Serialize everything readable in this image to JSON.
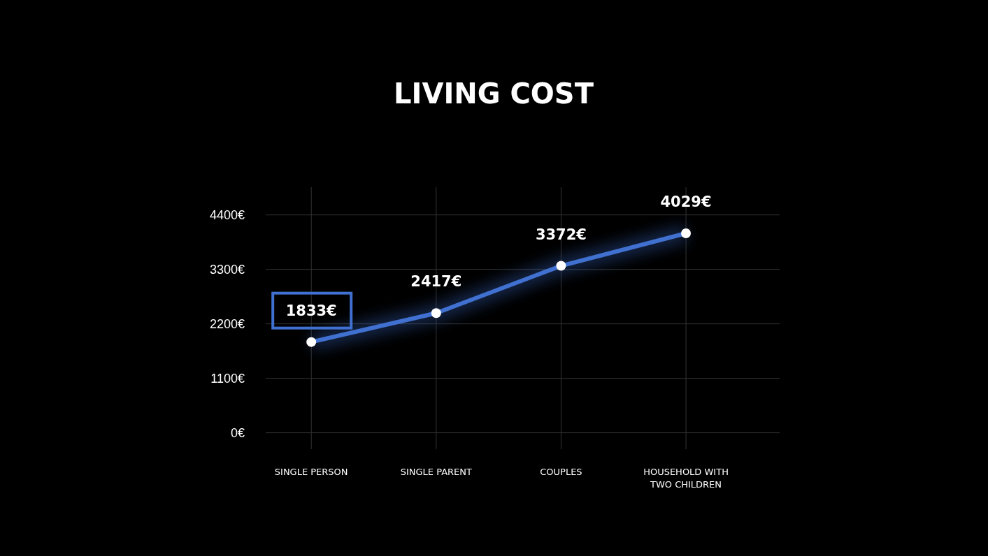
{
  "chart_data": {
    "type": "line",
    "title": "LIVING COST",
    "categories": [
      "SINGLE PERSON",
      "SINGLE PARENT",
      "COUPLES",
      "HOUSEHOLD WITH TWO CHILDREN"
    ],
    "series": [
      {
        "color": "#4070d0",
        "values": [
          1833,
          2417,
          3372,
          4029
        ],
        "value_labels": [
          "1833€",
          "2417€",
          "3372€",
          "4029€"
        ]
      }
    ],
    "ylim": [
      -330,
      4960
    ],
    "yticks": [
      {
        "value": 0,
        "label": "0€"
      },
      {
        "value": 1100,
        "label": "1100€"
      },
      {
        "value": 2200,
        "label": "2200€"
      },
      {
        "value": 3300,
        "label": "3300€"
      },
      {
        "value": 4400,
        "label": "4400€"
      }
    ],
    "grid": true,
    "marker": "circle",
    "line_style": "solid"
  }
}
